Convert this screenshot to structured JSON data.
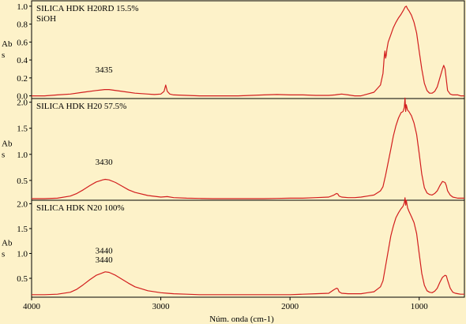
{
  "chart_data": [
    {
      "type": "line",
      "title": "SILICA HDK H20RD 15.5%",
      "subtitle": "SiOH",
      "ylabel": "Abs",
      "xlabel": "",
      "xlim": [
        4000,
        650
      ],
      "ylim": [
        -0.03,
        1.06
      ],
      "yticks": [
        "0.0",
        "0.2",
        "0.4",
        "0.6",
        "0.8",
        "1.0"
      ],
      "ytick_values": [
        0.0,
        0.2,
        0.4,
        0.6,
        0.8,
        1.0
      ],
      "line_color": "#d21e1e",
      "annotations": [
        {
          "text": "3435",
          "x": 3440,
          "y": 0.26
        }
      ],
      "series": [
        {
          "x": [
            4000,
            3900,
            3800,
            3700,
            3600,
            3500,
            3435,
            3400,
            3300,
            3200,
            3100,
            3050,
            3000,
            2975,
            2962,
            2950,
            2930,
            2900,
            2800,
            2700,
            2600,
            2500,
            2400,
            2300,
            2200,
            2100,
            2000,
            1900,
            1800,
            1700,
            1650,
            1630,
            1600,
            1550,
            1500,
            1450,
            1400,
            1350,
            1300,
            1280,
            1270,
            1265,
            1260,
            1255,
            1250,
            1240,
            1220,
            1200,
            1180,
            1160,
            1140,
            1120,
            1110,
            1100,
            1090,
            1080,
            1060,
            1040,
            1020,
            1000,
            980,
            960,
            940,
            920,
            900,
            880,
            860,
            840,
            820,
            810,
            800,
            790,
            780,
            760,
            740,
            720,
            700,
            680,
            650
          ],
          "y": [
            0.0,
            0.0,
            0.01,
            0.02,
            0.04,
            0.06,
            0.07,
            0.07,
            0.05,
            0.03,
            0.02,
            0.015,
            0.02,
            0.05,
            0.12,
            0.05,
            0.02,
            0.01,
            0.005,
            0.0,
            0.0,
            0.0,
            0.0,
            0.005,
            0.01,
            0.015,
            0.01,
            0.01,
            0.005,
            0.005,
            0.01,
            0.015,
            0.02,
            0.01,
            0.0,
            0.0,
            0.02,
            0.04,
            0.12,
            0.25,
            0.45,
            0.5,
            0.42,
            0.45,
            0.52,
            0.6,
            0.68,
            0.76,
            0.82,
            0.87,
            0.91,
            0.96,
            0.99,
            1.0,
            0.97,
            0.95,
            0.9,
            0.82,
            0.7,
            0.5,
            0.3,
            0.14,
            0.06,
            0.03,
            0.03,
            0.05,
            0.1,
            0.2,
            0.3,
            0.34,
            0.3,
            0.18,
            0.06,
            0.02,
            0.01,
            0.01,
            0.01,
            0.0,
            0.0
          ]
        }
      ]
    },
    {
      "type": "line",
      "title": "SILICA HDK H20  57.5%",
      "ylabel": "Abs",
      "xlabel": "",
      "xlim": [
        4000,
        650
      ],
      "ylim": [
        0.12,
        2.07
      ],
      "yticks": [
        "0.5",
        "1.0",
        "1.5",
        "2.0"
      ],
      "ytick_values": [
        0.5,
        1.0,
        1.5,
        2.0
      ],
      "line_color": "#d21e1e",
      "annotations": [
        {
          "text": "3430",
          "x": 3440,
          "y": 0.8
        }
      ],
      "series": [
        {
          "x": [
            4000,
            3900,
            3800,
            3700,
            3650,
            3600,
            3550,
            3500,
            3450,
            3430,
            3400,
            3350,
            3300,
            3250,
            3200,
            3100,
            3000,
            2950,
            2900,
            2800,
            2700,
            2600,
            2500,
            2400,
            2300,
            2200,
            2100,
            2000,
            1900,
            1800,
            1700,
            1660,
            1640,
            1630,
            1620,
            1600,
            1550,
            1500,
            1450,
            1400,
            1350,
            1300,
            1280,
            1260,
            1240,
            1220,
            1200,
            1180,
            1160,
            1140,
            1125,
            1115,
            1110,
            1105,
            1100,
            1090,
            1080,
            1060,
            1040,
            1020,
            1000,
            980,
            960,
            940,
            920,
            900,
            880,
            860,
            840,
            820,
            800,
            790,
            780,
            760,
            740,
            720,
            700,
            680,
            650
          ],
          "y": [
            0.15,
            0.15,
            0.16,
            0.2,
            0.25,
            0.32,
            0.4,
            0.47,
            0.51,
            0.52,
            0.51,
            0.46,
            0.39,
            0.32,
            0.27,
            0.21,
            0.18,
            0.19,
            0.17,
            0.16,
            0.155,
            0.15,
            0.15,
            0.15,
            0.15,
            0.15,
            0.155,
            0.16,
            0.16,
            0.17,
            0.18,
            0.22,
            0.25,
            0.24,
            0.2,
            0.18,
            0.17,
            0.17,
            0.18,
            0.2,
            0.22,
            0.3,
            0.38,
            0.6,
            0.85,
            1.1,
            1.35,
            1.55,
            1.7,
            1.8,
            1.82,
            1.9,
            2.08,
            1.82,
            1.95,
            1.85,
            1.82,
            1.74,
            1.6,
            1.38,
            1.02,
            0.62,
            0.36,
            0.26,
            0.23,
            0.22,
            0.25,
            0.3,
            0.4,
            0.48,
            0.46,
            0.4,
            0.3,
            0.22,
            0.18,
            0.17,
            0.16,
            0.16,
            0.16
          ]
        }
      ]
    },
    {
      "type": "line",
      "title": "SILICA HDK N20  100%",
      "ylabel": "Abs",
      "xlabel": "Núm. onda (cm-1)",
      "xlim": [
        4000,
        650
      ],
      "ylim": [
        0.12,
        2.07
      ],
      "yticks": [
        "0.5",
        "1.0",
        "1.5",
        "2.0"
      ],
      "ytick_values": [
        0.5,
        1.0,
        1.5,
        2.0
      ],
      "xticks": [
        "4000",
        "3000",
        "2000",
        "1000"
      ],
      "xtick_values": [
        4000,
        3000,
        2000,
        1000
      ],
      "line_color": "#d21e1e",
      "annotations": [
        {
          "text": "3440",
          "x": 3440,
          "y": 1.0
        },
        {
          "text": "3440",
          "x": 3440,
          "y": 0.82
        }
      ],
      "series": [
        {
          "x": [
            4000,
            3900,
            3800,
            3700,
            3650,
            3600,
            3550,
            3500,
            3450,
            3430,
            3400,
            3350,
            3300,
            3250,
            3200,
            3100,
            3000,
            2950,
            2900,
            2800,
            2700,
            2600,
            2500,
            2400,
            2300,
            2200,
            2100,
            2000,
            1900,
            1800,
            1700,
            1660,
            1640,
            1630,
            1620,
            1600,
            1550,
            1500,
            1450,
            1400,
            1350,
            1300,
            1280,
            1260,
            1240,
            1220,
            1200,
            1180,
            1160,
            1140,
            1125,
            1115,
            1110,
            1105,
            1100,
            1090,
            1080,
            1060,
            1040,
            1020,
            1000,
            980,
            960,
            940,
            920,
            900,
            880,
            860,
            840,
            820,
            800,
            790,
            780,
            760,
            740,
            720,
            700,
            680,
            650
          ],
          "y": [
            0.17,
            0.17,
            0.18,
            0.22,
            0.28,
            0.37,
            0.47,
            0.56,
            0.61,
            0.63,
            0.62,
            0.56,
            0.48,
            0.4,
            0.33,
            0.25,
            0.21,
            0.2,
            0.19,
            0.18,
            0.17,
            0.17,
            0.17,
            0.17,
            0.17,
            0.17,
            0.17,
            0.17,
            0.18,
            0.19,
            0.2,
            0.27,
            0.3,
            0.29,
            0.23,
            0.2,
            0.19,
            0.19,
            0.19,
            0.21,
            0.23,
            0.33,
            0.45,
            0.75,
            1.05,
            1.35,
            1.55,
            1.72,
            1.82,
            1.9,
            1.95,
            2.02,
            2.12,
            1.97,
            2.07,
            1.92,
            1.85,
            1.74,
            1.62,
            1.4,
            1.0,
            0.6,
            0.36,
            0.25,
            0.22,
            0.21,
            0.24,
            0.3,
            0.42,
            0.52,
            0.56,
            0.55,
            0.46,
            0.3,
            0.22,
            0.2,
            0.19,
            0.18,
            0.18
          ]
        }
      ]
    }
  ]
}
